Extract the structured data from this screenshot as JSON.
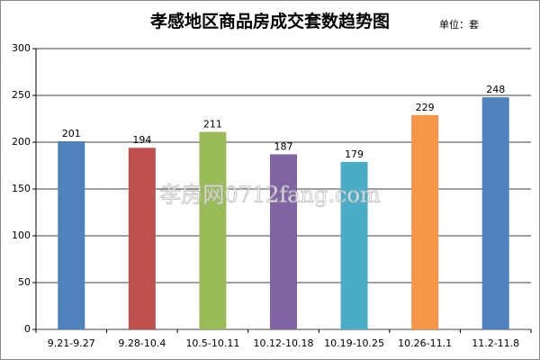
{
  "chart_data": {
    "type": "bar",
    "title": "孝感地区商品房成交套数趋势图",
    "subtitle": "单位：套",
    "watermark": "孝房网0712fang.com",
    "categories": [
      "9.21-9.27",
      "9.28-10.4",
      "10.5-10.11",
      "10.12-10.18",
      "10.19-10.25",
      "10.26-11.1",
      "11.2-11.8"
    ],
    "values": [
      201,
      194,
      211,
      187,
      179,
      229,
      248
    ],
    "colors": [
      "#4f81bd",
      "#c0504d",
      "#9bbb59",
      "#8064a2",
      "#4bacc6",
      "#f79646",
      "#4f81bd"
    ],
    "ylim": [
      0,
      300
    ],
    "yticks": [
      0,
      50,
      100,
      150,
      200,
      250,
      300
    ],
    "grid": true
  }
}
